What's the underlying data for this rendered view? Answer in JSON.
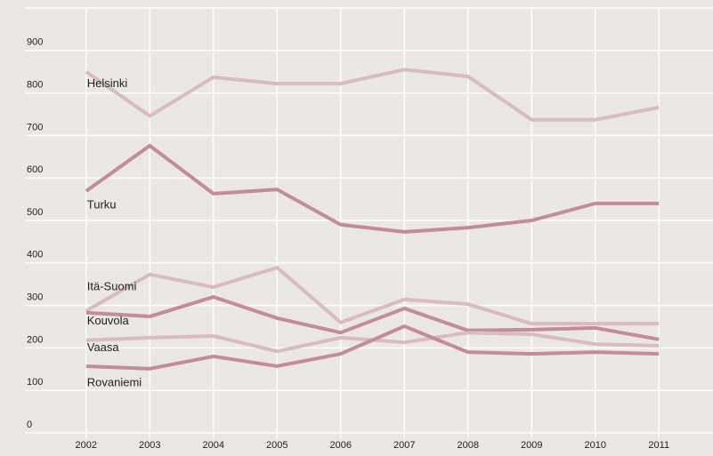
{
  "chart_data": {
    "type": "line",
    "x": [
      2002,
      2003,
      2004,
      2005,
      2006,
      2007,
      2008,
      2009,
      2010,
      2011
    ],
    "xlim": [
      2001.5,
      2011.5
    ],
    "xticks": [
      2002,
      2003,
      2004,
      2005,
      2006,
      2007,
      2008,
      2009,
      2010,
      2011
    ],
    "ylim": [
      0,
      1000
    ],
    "yticks": [
      0,
      100,
      200,
      300,
      400,
      500,
      600,
      700,
      800,
      900
    ],
    "grid": true,
    "series": [
      {
        "name": "Helsinki",
        "color": "#d9bcc2",
        "values": [
          850,
          746,
          837,
          822,
          822,
          855,
          839,
          737,
          737,
          766
        ]
      },
      {
        "name": "Turku",
        "color": "#c28d99",
        "values": [
          569,
          676,
          563,
          573,
          490,
          473,
          483,
          500,
          540,
          540
        ]
      },
      {
        "name": "Itä-Suomi",
        "color": "#d9bcc2",
        "values": [
          287,
          373,
          343,
          389,
          260,
          314,
          303,
          257,
          257,
          257
        ]
      },
      {
        "name": "Kouvola",
        "color": "#c28d99",
        "values": [
          283,
          274,
          320,
          270,
          236,
          293,
          241,
          243,
          247,
          220
        ]
      },
      {
        "name": "Vaasa",
        "color": "#d9bcc2",
        "values": [
          218,
          224,
          228,
          192,
          224,
          213,
          236,
          232,
          209,
          205
        ]
      },
      {
        "name": "Rovaniemi",
        "color": "#c28d99",
        "values": [
          157,
          151,
          180,
          157,
          186,
          251,
          190,
          186,
          190,
          186
        ]
      }
    ]
  }
}
